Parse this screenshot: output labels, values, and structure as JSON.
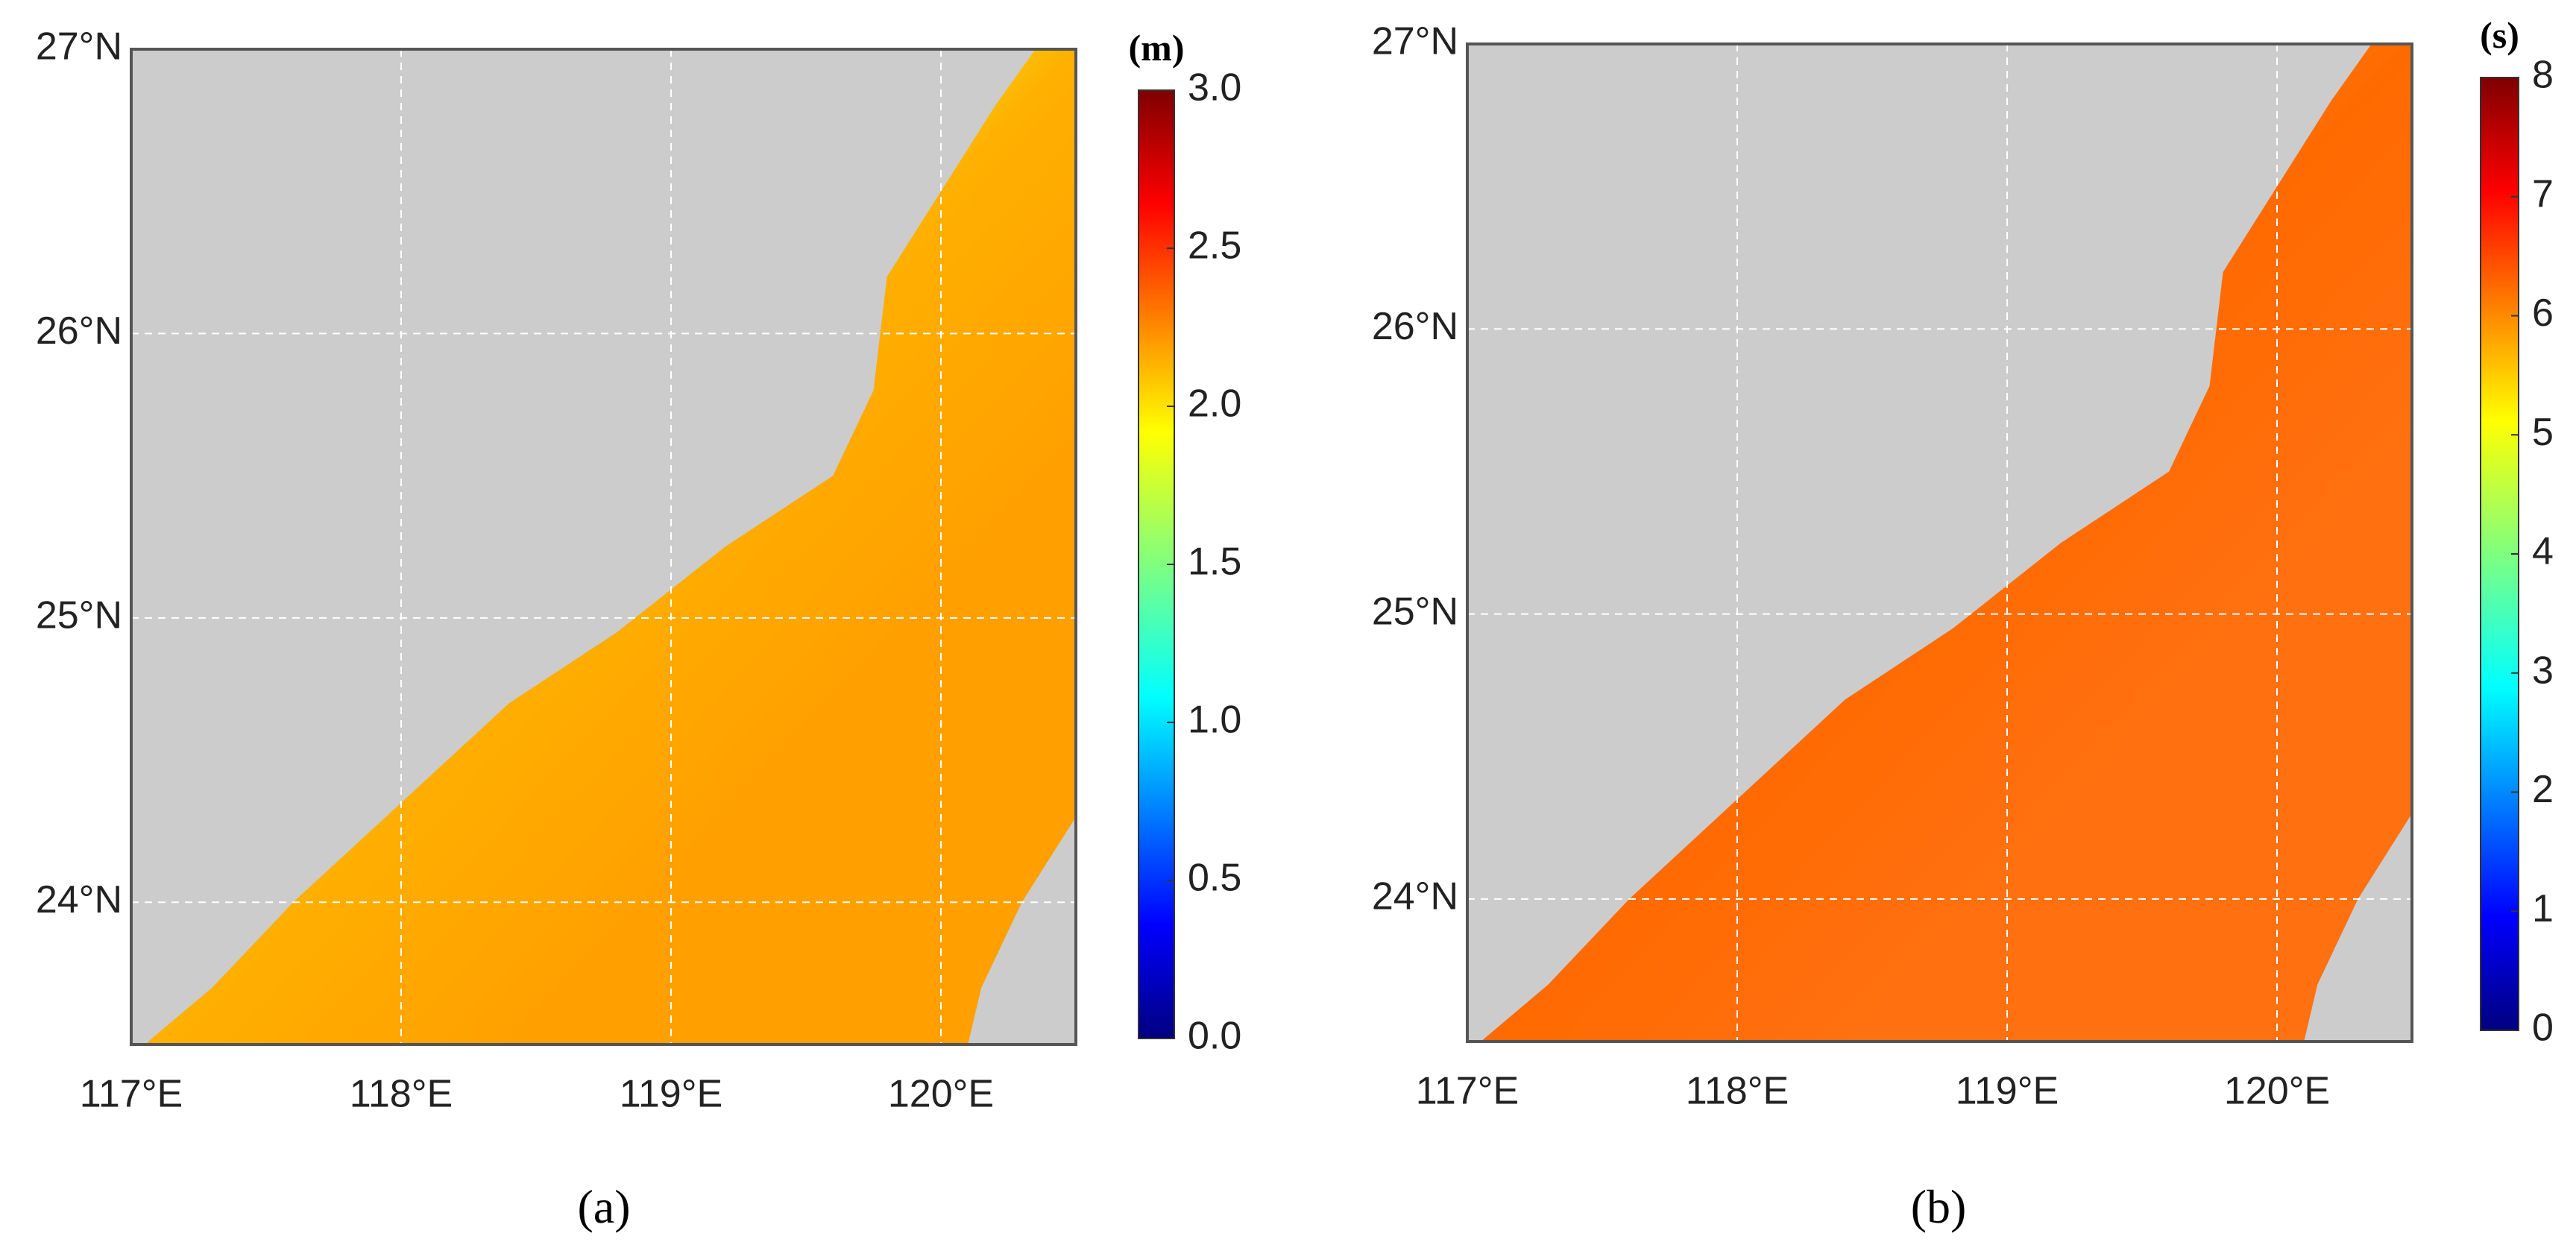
{
  "maps": [
    {
      "label": "(a)",
      "unit": "(m)",
      "xlim": [
        117,
        120.5
      ],
      "ylim": [
        23.5,
        27
      ],
      "xticks": [
        {
          "value": 117,
          "label": "117°E"
        },
        {
          "value": 118,
          "label": "118°E"
        },
        {
          "value": 119,
          "label": "119°E"
        },
        {
          "value": 120,
          "label": "120°E"
        }
      ],
      "yticks": [
        {
          "value": 24,
          "label": "24°N"
        },
        {
          "value": 25,
          "label": "25°N"
        },
        {
          "value": 26,
          "label": "26°N"
        },
        {
          "value": 27,
          "label": "27°N"
        }
      ],
      "colorbar": {
        "lim": [
          0,
          3
        ],
        "ticks": [
          {
            "value": 0,
            "label": "0.0"
          },
          {
            "value": 0.5,
            "label": "0.5"
          },
          {
            "value": 1,
            "label": "1.0"
          },
          {
            "value": 1.5,
            "label": "1.5"
          },
          {
            "value": 2,
            "label": "2.0"
          },
          {
            "value": 2.5,
            "label": "2.5"
          },
          {
            "value": 3,
            "label": "3.0"
          }
        ]
      }
    },
    {
      "label": "(b)",
      "unit": "(s)",
      "xlim": [
        117,
        120.5
      ],
      "ylim": [
        23.5,
        27
      ],
      "xticks": [
        {
          "value": 117,
          "label": "117°E"
        },
        {
          "value": 118,
          "label": "118°E"
        },
        {
          "value": 119,
          "label": "119°E"
        },
        {
          "value": 120,
          "label": "120°E"
        }
      ],
      "yticks": [
        {
          "value": 24,
          "label": "24°N"
        },
        {
          "value": 25,
          "label": "25°N"
        },
        {
          "value": 26,
          "label": "26°N"
        },
        {
          "value": 27,
          "label": "27°N"
        }
      ],
      "colorbar": {
        "lim": [
          0,
          8
        ],
        "ticks": [
          0,
          1,
          2,
          3,
          4,
          5,
          6,
          7,
          8
        ]
      }
    }
  ]
}
